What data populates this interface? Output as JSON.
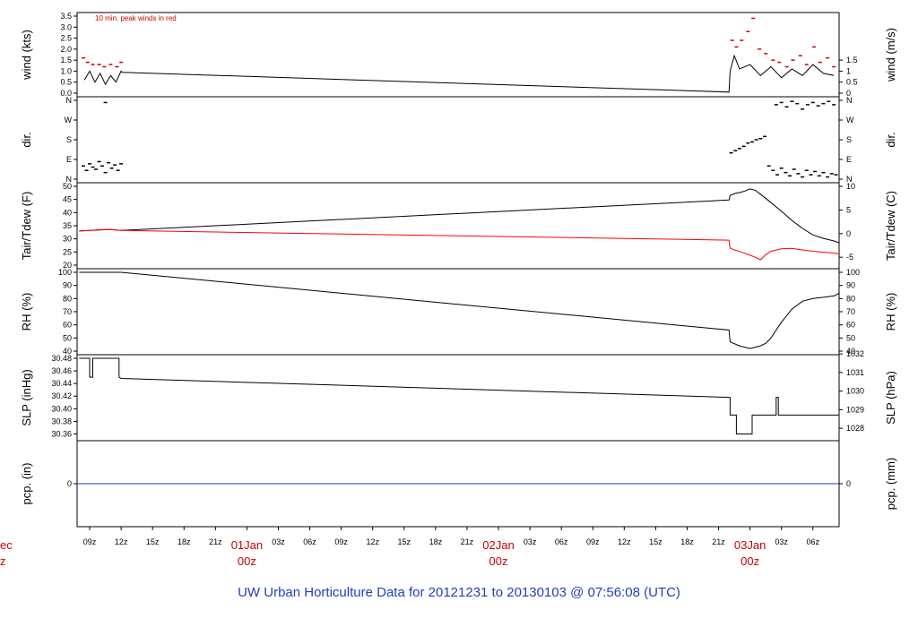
{
  "title": "UW Urban Horticulture Data for 20121231  to  20130103 @ 07:56:08  (UTC)",
  "chart_data": {
    "type": "line",
    "x_axis": {
      "unit": "hours since 20121231 09z",
      "range_hours": [
        -1.2,
        71.5
      ],
      "hour_ticks": [
        {
          "h": 0,
          "label": "09z"
        },
        {
          "h": 3,
          "label": "12z"
        },
        {
          "h": 6,
          "label": "15z"
        },
        {
          "h": 9,
          "label": "18z"
        },
        {
          "h": 12,
          "label": "21z"
        },
        {
          "h": 15,
          "label": "01Jan"
        },
        {
          "h": 18,
          "label": "03z"
        },
        {
          "h": 21,
          "label": "06z"
        },
        {
          "h": 24,
          "label": "09z"
        },
        {
          "h": 27,
          "label": "12z"
        },
        {
          "h": 30,
          "label": "15z"
        },
        {
          "h": 33,
          "label": "18z"
        },
        {
          "h": 36,
          "label": "21z"
        },
        {
          "h": 39,
          "label": "02Jan"
        },
        {
          "h": 42,
          "label": "03z"
        },
        {
          "h": 45,
          "label": "06z"
        },
        {
          "h": 48,
          "label": "09z"
        },
        {
          "h": 51,
          "label": "12z"
        },
        {
          "h": 54,
          "label": "15z"
        },
        {
          "h": 57,
          "label": "18z"
        },
        {
          "h": 60,
          "label": "21z"
        },
        {
          "h": 63,
          "label": "03Jan"
        },
        {
          "h": 66,
          "label": "03z"
        },
        {
          "h": 69,
          "label": "06z"
        }
      ],
      "day_labels": [
        {
          "h": 15,
          "date": "01Jan",
          "time": "00z"
        },
        {
          "h": 39,
          "date": "02Jan",
          "time": "00z"
        },
        {
          "h": 63,
          "date": "03Jan",
          "time": "00z"
        }
      ],
      "edge_fragments": [
        "ec",
        "z"
      ]
    },
    "panels": [
      {
        "id": "wind",
        "ylabel": "wind (kts)",
        "ylabel_right": "wind (m/s)",
        "ylim": [
          0,
          3.5
        ],
        "left_ticks": [
          "0.0",
          "0.5",
          "1.0",
          "1.5",
          "2.0",
          "2.5",
          "3.0",
          "3.5"
        ],
        "right_ticks": [
          {
            "v": 0,
            "label": "0"
          },
          {
            "v": 0.5,
            "label": "0.5"
          },
          {
            "v": 1,
            "label": "1"
          },
          {
            "v": 1.5,
            "label": "1.5"
          }
        ],
        "note": "10 min. peak winds in red",
        "series": [
          {
            "color": "#000000",
            "x": [
              -0.5,
              0.0,
              0.5,
              1.0,
              1.5,
              2.0,
              2.5,
              3.0,
              3.1,
              61.0,
              61.1,
              61.5,
              62.0,
              63.0,
              64.0,
              65.0,
              66.0,
              67.0,
              68.0,
              69.0,
              70.0,
              71.0
            ],
            "y": [
              0.6,
              1.0,
              0.5,
              0.9,
              0.4,
              0.8,
              0.5,
              1.0,
              0.95,
              0.05,
              1.0,
              1.7,
              1.1,
              1.3,
              0.8,
              1.2,
              0.7,
              1.1,
              0.8,
              1.3,
              0.9,
              0.8
            ]
          },
          {
            "color": "#cc0000",
            "marker": "dash",
            "x": [
              -0.6,
              -0.2,
              0.3,
              0.9,
              1.4,
              2.0,
              2.6,
              3.0,
              61.3,
              61.7,
              62.2,
              62.8,
              63.3,
              63.9,
              64.5,
              65.2,
              65.8,
              66.5,
              67.1,
              67.8,
              68.4,
              69.1,
              69.7,
              70.4,
              71.0
            ],
            "y": [
              1.6,
              1.4,
              1.3,
              1.3,
              1.2,
              1.3,
              1.2,
              1.4,
              2.4,
              2.1,
              2.4,
              2.8,
              3.4,
              2.0,
              1.8,
              1.5,
              1.4,
              1.2,
              1.5,
              1.7,
              1.3,
              2.1,
              1.4,
              1.6,
              1.2
            ]
          }
        ]
      },
      {
        "id": "dir",
        "ylabel": "dir.",
        "ylabel_right": "dir.",
        "ylim": [
          0,
          360
        ],
        "left_ticks": [
          {
            "v": 0,
            "label": "N"
          },
          {
            "v": 90,
            "label": "E"
          },
          {
            "v": 180,
            "label": "S"
          },
          {
            "v": 270,
            "label": "W"
          },
          {
            "v": 360,
            "label": "N"
          }
        ],
        "series": [
          {
            "color": "#000000",
            "marker": "dash",
            "x": [
              -0.6,
              -0.3,
              0.0,
              0.3,
              0.6,
              0.9,
              1.2,
              1.5,
              1.8,
              2.1,
              2.4,
              2.7,
              3.0,
              1.5,
              61.2,
              61.6,
              62.0,
              62.4,
              62.8,
              63.2,
              63.6,
              64.0,
              64.4,
              64.8,
              65.2,
              65.6,
              66.0,
              66.4,
              66.8,
              67.2,
              67.6,
              68.0,
              68.4,
              68.8,
              69.2,
              69.6,
              70.0,
              70.4,
              70.8,
              71.2,
              65.5,
              66.0,
              66.5,
              67.0,
              67.5,
              68.0,
              68.5,
              69.0,
              69.5,
              70.0,
              70.5,
              71.0
            ],
            "y": [
              60,
              40,
              70,
              55,
              45,
              80,
              60,
              30,
              75,
              50,
              65,
              40,
              70,
              350,
              120,
              130,
              140,
              150,
              165,
              170,
              180,
              185,
              195,
              60,
              40,
              20,
              50,
              30,
              15,
              45,
              25,
              10,
              40,
              20,
              35,
              15,
              30,
              10,
              25,
              20,
              340,
              350,
              330,
              355,
              345,
              320,
              340,
              350,
              335,
              345,
              355,
              340
            ]
          }
        ]
      },
      {
        "id": "temp",
        "ylabel": "Tair/Tdew (F)",
        "ylabel_right": "Tair/Tdew (C)",
        "ylim": [
          20,
          50
        ],
        "left_ticks": [
          "20",
          "25",
          "30",
          "35",
          "40",
          "45",
          "50"
        ],
        "right_ticks": [
          {
            "v": 23,
            "label": "-5"
          },
          {
            "v": 32,
            "label": "0"
          },
          {
            "v": 41,
            "label": "5"
          },
          {
            "v": 50,
            "label": "10"
          }
        ],
        "series": [
          {
            "name": "Tair",
            "color": "#000000",
            "x": [
              -1.0,
              0.0,
              1.0,
              2.0,
              3.0,
              61.0,
              61.1,
              61.6,
              62.0,
              62.5,
              63.0,
              63.5,
              64.0,
              65.0,
              66.0,
              67.0,
              68.0,
              69.0,
              70.0,
              71.0,
              71.5
            ],
            "y": [
              33.0,
              33.2,
              33.4,
              33.6,
              33.2,
              44.8,
              46.5,
              47.3,
              47.6,
              48.2,
              49.0,
              48.5,
              47.0,
              43.8,
              40.5,
              37.0,
              34.0,
              31.5,
              30.2,
              29.2,
              28.5
            ]
          },
          {
            "name": "Tdew",
            "color": "#ff0000",
            "x": [
              -1.0,
              0.0,
              1.0,
              2.0,
              3.0,
              61.0,
              61.1,
              61.5,
              62.0,
              62.5,
              63.0,
              63.5,
              64.0,
              64.5,
              65.0,
              66.0,
              67.0,
              68.0,
              69.0,
              70.0,
              71.0,
              71.5
            ],
            "y": [
              33.0,
              33.2,
              33.5,
              33.6,
              33.2,
              29.5,
              26.5,
              25.8,
              25.2,
              24.5,
              23.8,
              23.0,
              22.0,
              24.0,
              25.3,
              26.2,
              26.4,
              25.8,
              25.3,
              24.9,
              24.6,
              24.3
            ]
          }
        ]
      },
      {
        "id": "rh",
        "ylabel": "RH (%)",
        "ylabel_right": "RH (%)",
        "ylim": [
          40,
          100
        ],
        "left_ticks": [
          "40",
          "50",
          "60",
          "70",
          "80",
          "90",
          "100"
        ],
        "right_ticks": [
          {
            "v": 40,
            "label": "40"
          },
          {
            "v": 50,
            "label": "50"
          },
          {
            "v": 60,
            "label": "60"
          },
          {
            "v": 70,
            "label": "70"
          },
          {
            "v": 80,
            "label": "80"
          },
          {
            "v": 90,
            "label": "90"
          },
          {
            "v": 100,
            "label": "100"
          }
        ],
        "series": [
          {
            "color": "#000000",
            "x": [
              -1.0,
              0.0,
              1.0,
              2.0,
              3.0,
              61.0,
              61.1,
              62.0,
              62.5,
              63.0,
              63.5,
              64.0,
              64.5,
              65.0,
              65.5,
              66.0,
              67.0,
              68.0,
              69.0,
              70.0,
              71.0,
              71.5
            ],
            "y": [
              100,
              100,
              100,
              100,
              100,
              56,
              47,
              44,
              43,
              42,
              43,
              44,
              46,
              50,
              56,
              62,
              72,
              78,
              80,
              81,
              82,
              84
            ]
          }
        ]
      },
      {
        "id": "slp",
        "ylabel": "SLP (inHg)",
        "ylabel_right": "SLP (hPa)",
        "ylim": [
          30.355,
          30.48
        ],
        "left_ticks": [
          {
            "v": 30.36,
            "label": "30.36"
          },
          {
            "v": 30.38,
            "label": "30.38"
          },
          {
            "v": 30.4,
            "label": "30.40"
          },
          {
            "v": 30.42,
            "label": "30.42"
          },
          {
            "v": 30.44,
            "label": "30.44"
          },
          {
            "v": 30.46,
            "label": "30.46"
          },
          {
            "v": 30.48,
            "label": "30.48"
          }
        ],
        "right_ticks": [
          {
            "v": 30.369,
            "label": "1028"
          },
          {
            "v": 30.3985,
            "label": "1029"
          },
          {
            "v": 30.428,
            "label": "1030"
          },
          {
            "v": 30.4575,
            "label": "1031"
          },
          {
            "v": 30.487,
            "label": "1032"
          }
        ],
        "series": [
          {
            "color": "#000000",
            "x": [
              -1.0,
              0.0,
              0.0,
              0.3,
              0.3,
              0.4,
              0.4,
              2.8,
              2.8,
              3.0,
              61.0,
              61.1,
              61.1,
              61.7,
              61.7,
              63.2,
              63.2,
              65.5,
              65.5,
              65.7,
              65.7,
              71.5
            ],
            "y": [
              30.48,
              30.48,
              30.45,
              30.45,
              30.48,
              30.48,
              30.48,
              30.48,
              30.45,
              30.448,
              30.418,
              30.418,
              30.39,
              30.39,
              30.36,
              30.36,
              30.39,
              30.39,
              30.418,
              30.418,
              30.39,
              30.39
            ]
          }
        ]
      },
      {
        "id": "pcp",
        "ylabel": "pcp. (in)",
        "ylabel_right": "pcp. (mm)",
        "ylim": [
          -1,
          1
        ],
        "left_ticks": [
          {
            "v": 0,
            "label": "0"
          }
        ],
        "right_ticks": [
          {
            "v": 0,
            "label": "0"
          }
        ],
        "series": [
          {
            "color": "#2233cc",
            "x": [
              -1.2,
              71.5
            ],
            "y": [
              0,
              0
            ]
          }
        ]
      }
    ]
  }
}
